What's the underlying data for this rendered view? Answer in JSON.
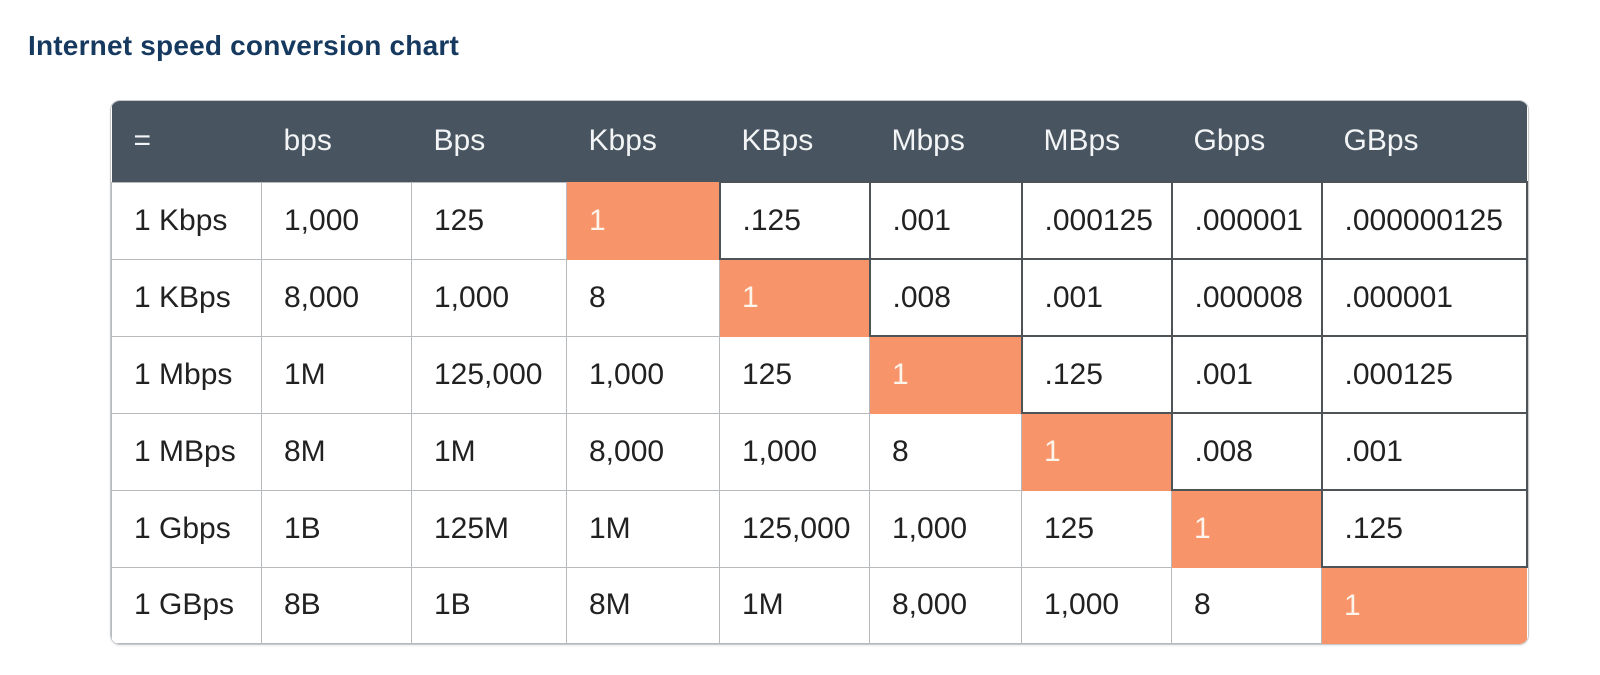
{
  "page": {
    "title": "Internet speed conversion chart"
  },
  "chart_data": {
    "type": "table",
    "title": "Internet speed conversion chart",
    "columns": [
      "=",
      "bps",
      "Bps",
      "Kbps",
      "KBps",
      "Mbps",
      "MBps",
      "Gbps",
      "GBps"
    ],
    "rows": [
      {
        "label": "1 Kbps",
        "values": [
          "1,000",
          "125",
          "1",
          ".125",
          ".001",
          ".000125",
          ".000001",
          ".000000125"
        ],
        "diagonal_index": 2
      },
      {
        "label": "1 KBps",
        "values": [
          "8,000",
          "1,000",
          "8",
          "1",
          ".008",
          ".001",
          ".000008",
          ".000001"
        ],
        "diagonal_index": 3
      },
      {
        "label": "1 Mbps",
        "values": [
          "1M",
          "125,000",
          "1,000",
          "125",
          "1",
          ".125",
          ".001",
          ".000125"
        ],
        "diagonal_index": 4
      },
      {
        "label": "1 MBps",
        "values": [
          "8M",
          "1M",
          "8,000",
          "1,000",
          "8",
          "1",
          ".008",
          ".001"
        ],
        "diagonal_index": 5
      },
      {
        "label": "1 Gbps",
        "values": [
          "1B",
          "125M",
          "1M",
          "125,000",
          "1,000",
          "125",
          "1",
          ".125"
        ],
        "diagonal_index": 6
      },
      {
        "label": "1 GBps",
        "values": [
          "8B",
          "1B",
          "8M",
          "1M",
          "8,000",
          "1,000",
          "8",
          "1"
        ],
        "diagonal_index": 7
      }
    ],
    "colors": {
      "header_bg": "#485561",
      "header_text": "#f2f4f5",
      "highlight": "#f89469",
      "highlight_text": "#fdf4ec",
      "border_light": "#b7babd",
      "border_dark": "#4e5357",
      "cell_text": "#212121",
      "title_text": "#16395f"
    }
  }
}
